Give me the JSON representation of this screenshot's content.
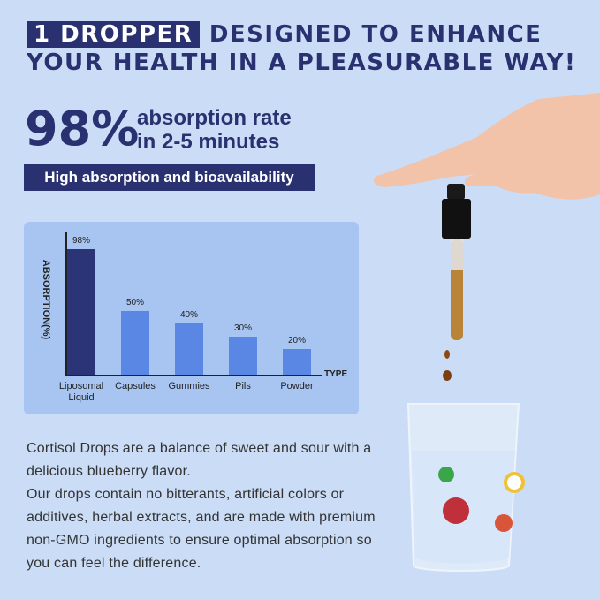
{
  "header": {
    "highlight": "1 DROPPER",
    "line1": "DESIGNED TO ENHANCE",
    "line2": "YOUR HEALTH IN A PLEASURABLE WAY!"
  },
  "stat": {
    "number": "98%",
    "line1": "absorption rate",
    "line2": "in 2-5 minutes"
  },
  "banner": "High absorption and bioavailability",
  "chart_data": {
    "type": "bar",
    "y_label": "ABSORPTION(%)",
    "x_label": "TYPE",
    "categories": [
      "Liposomal Liquid",
      "Capsules",
      "Gummies",
      "Pils",
      "Powder"
    ],
    "values": [
      98,
      50,
      40,
      30,
      20
    ],
    "value_labels": [
      "98%",
      "50%",
      "40%",
      "30%",
      "20%"
    ],
    "colors": [
      "#2b3477",
      "#5a86e4",
      "#5a86e4",
      "#5a86e4",
      "#5a86e4"
    ],
    "ylim": [
      0,
      100
    ]
  },
  "description": [
    "Cortisol Drops are a balance of sweet and sour with a delicious blueberry flavor.",
    "Our drops contain no bitterants, artificial colors or additives, herbal extracts, and are made with premium non-GMO ingredients to ensure optimal absorption so you can feel the difference."
  ]
}
